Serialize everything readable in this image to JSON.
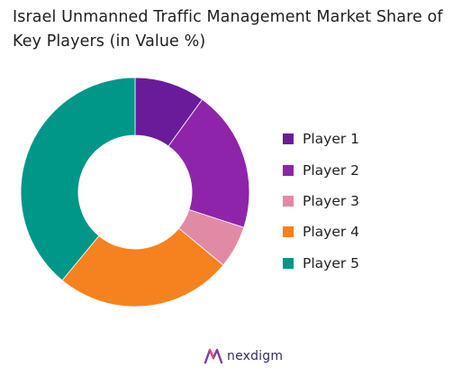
{
  "chart_data": {
    "type": "pie",
    "style": "donut",
    "title": "Israel Unmanned Traffic Management Market Share of Key Players (in Value %)",
    "categories": [
      "Player 1",
      "Player 2",
      "Player 3",
      "Player 4",
      "Player 5"
    ],
    "values": [
      10,
      20,
      6,
      25,
      39
    ],
    "colors": [
      "#6a1b9a",
      "#8e24aa",
      "#e18aa6",
      "#f5821f",
      "#009688"
    ],
    "legend_position": "right"
  },
  "brand": {
    "name": "nexdigm"
  }
}
